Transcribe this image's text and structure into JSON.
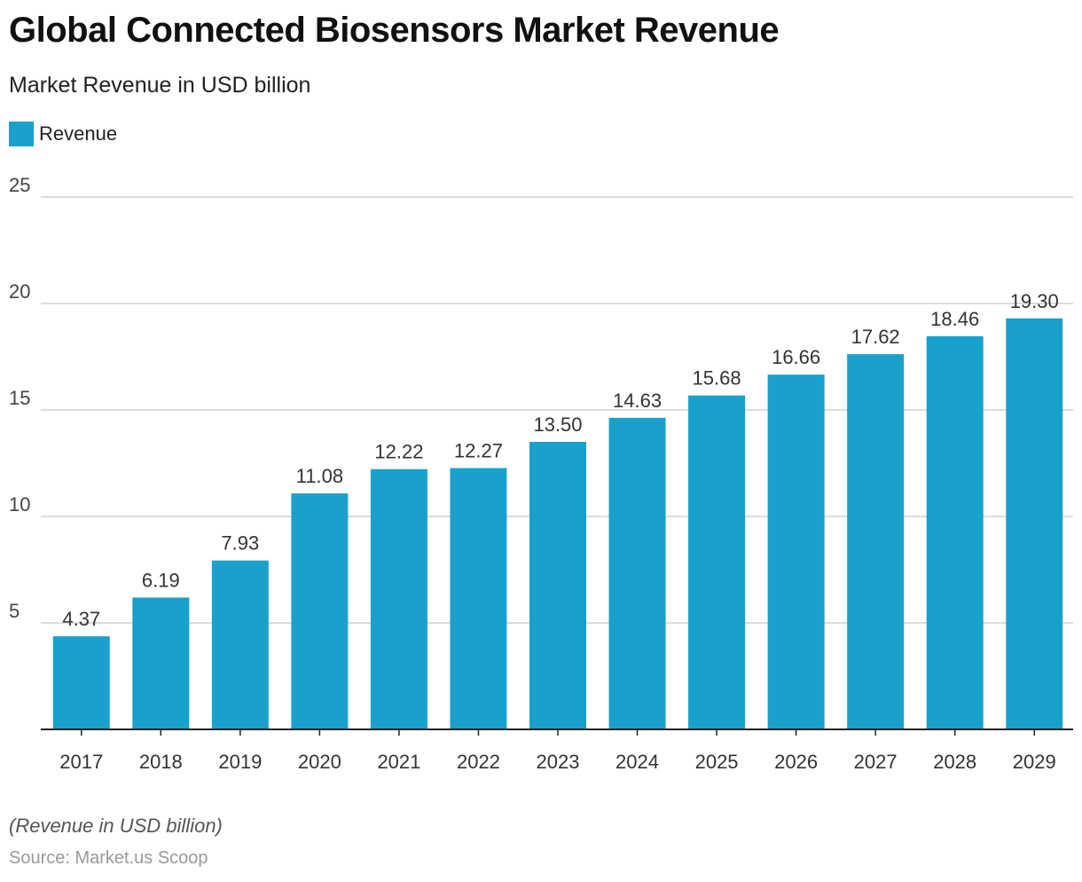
{
  "header": {
    "title": "Global Connected Biosensors Market Revenue",
    "subtitle": "Market Revenue in USD billion"
  },
  "footer": {
    "note": "(Revenue in USD billion)",
    "source": "Source: Market.us Scoop"
  },
  "colors": {
    "bar": "#19a1cc",
    "grid": "#d0d0d0",
    "axis": "#222222",
    "tick_text": "#444444",
    "value_text": "#333333"
  },
  "chart_data": {
    "type": "bar",
    "title": "Global Connected Biosensors Market Revenue",
    "subtitle": "Market Revenue in USD billion",
    "xlabel": "",
    "ylabel": "",
    "categories": [
      "2017",
      "2018",
      "2019",
      "2020",
      "2021",
      "2022",
      "2023",
      "2024",
      "2025",
      "2026",
      "2027",
      "2028",
      "2029"
    ],
    "series": [
      {
        "name": "Revenue",
        "values": [
          4.37,
          6.19,
          7.93,
          11.08,
          12.22,
          12.27,
          13.5,
          14.63,
          15.68,
          16.66,
          17.62,
          18.46,
          19.3
        ],
        "labels": [
          "4.37",
          "6.19",
          "7.93",
          "11.08",
          "12.22",
          "12.27",
          "13.50",
          "14.63",
          "15.68",
          "16.66",
          "17.62",
          "18.46",
          "19.30"
        ]
      }
    ],
    "ylim": [
      0,
      25
    ],
    "yticks": [
      "5",
      "10",
      "15",
      "20",
      "25"
    ],
    "grid": true,
    "legend": "top-left"
  }
}
